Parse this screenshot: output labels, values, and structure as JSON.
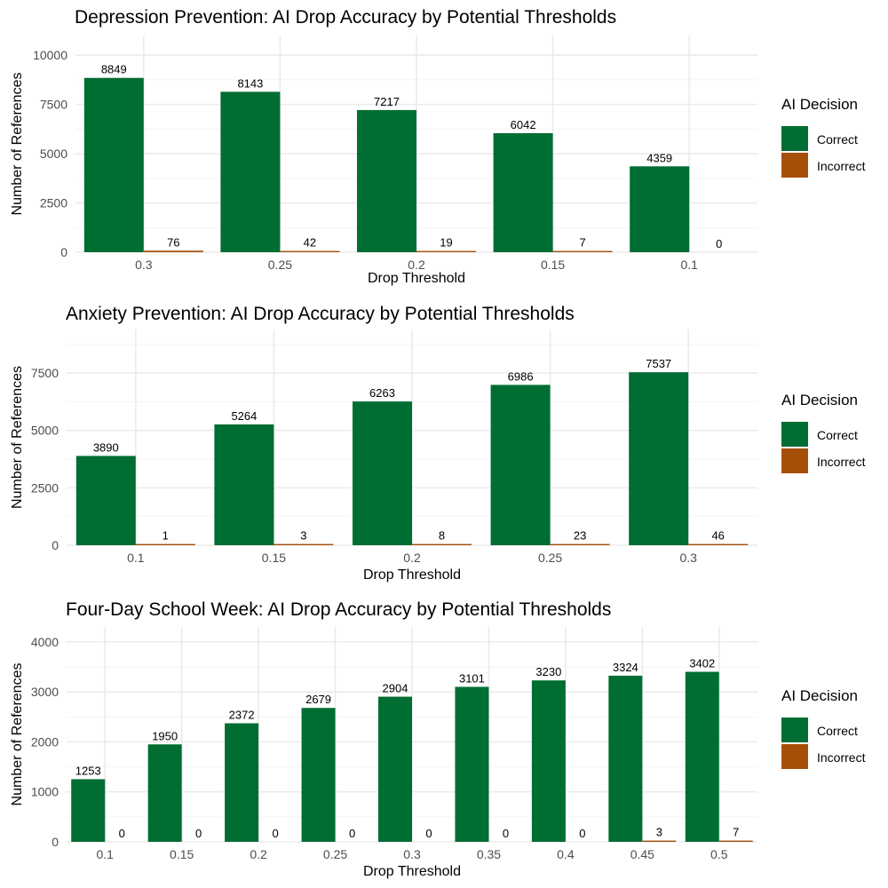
{
  "chart_data": [
    {
      "type": "bar",
      "title": "Depression Prevention: AI Drop Accuracy by Potential Thresholds",
      "xlabel": "Drop Threshold",
      "ylabel": "Number of References",
      "categories": [
        "0.3",
        "0.25",
        "0.2",
        "0.15",
        "0.1"
      ],
      "series": [
        {
          "name": "Correct",
          "values": [
            8849,
            8143,
            7217,
            6042,
            4359
          ]
        },
        {
          "name": "Incorrect",
          "values": [
            76,
            42,
            19,
            7,
            0
          ]
        }
      ],
      "ylim": [
        0,
        11000
      ],
      "yticks": [
        0,
        2500,
        5000,
        7500,
        10000
      ],
      "legend": {
        "title": "AI Decision",
        "position": "right"
      }
    },
    {
      "type": "bar",
      "title": "Anxiety Prevention: AI Drop Accuracy by Potential Thresholds",
      "xlabel": "Drop Threshold",
      "ylabel": "Number of References",
      "categories": [
        "0.1",
        "0.15",
        "0.2",
        "0.25",
        "0.3"
      ],
      "series": [
        {
          "name": "Correct",
          "values": [
            3890,
            5264,
            6263,
            6986,
            7537
          ]
        },
        {
          "name": "Incorrect",
          "values": [
            1,
            3,
            8,
            23,
            46
          ]
        }
      ],
      "ylim": [
        0,
        9400
      ],
      "yticks": [
        0,
        2500,
        5000,
        7500
      ],
      "legend": {
        "title": "AI Decision",
        "position": "right"
      }
    },
    {
      "type": "bar",
      "title": "Four-Day School Week: AI Drop Accuracy by Potential Thresholds",
      "xlabel": "Drop Threshold",
      "ylabel": "Number of References",
      "categories": [
        "0.1",
        "0.15",
        "0.2",
        "0.25",
        "0.3",
        "0.35",
        "0.4",
        "0.45",
        "0.5"
      ],
      "series": [
        {
          "name": "Correct",
          "values": [
            1253,
            1950,
            2372,
            2679,
            2904,
            3101,
            3230,
            3324,
            3402
          ]
        },
        {
          "name": "Incorrect",
          "values": [
            0,
            0,
            0,
            0,
            0,
            0,
            0,
            3,
            7
          ]
        }
      ],
      "ylim": [
        0,
        4300
      ],
      "yticks": [
        0,
        1000,
        2000,
        3000,
        4000
      ],
      "legend": {
        "title": "AI Decision",
        "position": "right"
      }
    }
  ],
  "colors": {
    "Correct": "#006d33",
    "Incorrect": "#a64f08"
  }
}
